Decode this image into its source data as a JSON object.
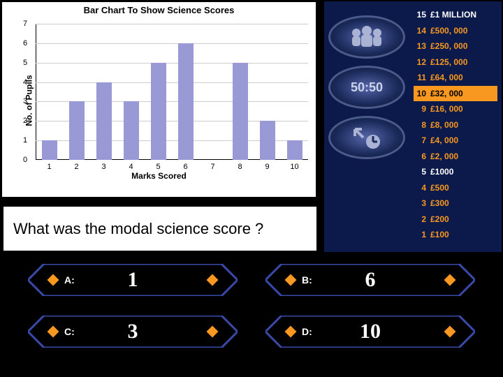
{
  "chart": {
    "title": "Bar Chart To Show Science Scores",
    "y_label": "No. of Pupils",
    "x_label": "Marks Scored",
    "ymax": 7,
    "yticks": [
      0,
      1,
      2,
      3,
      4,
      5,
      6,
      7
    ],
    "xticks": [
      1,
      2,
      3,
      4,
      5,
      6,
      7,
      8,
      9,
      10
    ],
    "values": [
      1,
      3,
      4,
      3,
      5,
      6,
      0,
      5,
      2,
      1
    ],
    "bar_color": "#9999d6",
    "grid_color": "#cccccc",
    "bg": "#ffffff"
  },
  "lifelines": {
    "audience_label": "",
    "fifty_label": "50:50",
    "phone_label": ""
  },
  "money": [
    {
      "n": "15",
      "v": "£1 MILLION",
      "milestone": true
    },
    {
      "n": "14",
      "v": "£500, 000",
      "milestone": false
    },
    {
      "n": "13",
      "v": "£250, 000",
      "milestone": false
    },
    {
      "n": "12",
      "v": "£125, 000",
      "milestone": false
    },
    {
      "n": "11",
      "v": "£64, 000",
      "milestone": false
    },
    {
      "n": "10",
      "v": "£32, 000",
      "milestone": true,
      "current": true
    },
    {
      "n": "9",
      "v": "£16, 000",
      "milestone": false
    },
    {
      "n": "8",
      "v": "£8, 000",
      "milestone": false
    },
    {
      "n": "7",
      "v": "£4, 000",
      "milestone": false
    },
    {
      "n": "6",
      "v": "£2, 000",
      "milestone": false
    },
    {
      "n": "5",
      "v": "£1000",
      "milestone": true
    },
    {
      "n": "4",
      "v": "£500",
      "milestone": false
    },
    {
      "n": "3",
      "v": "£300",
      "milestone": false
    },
    {
      "n": "2",
      "v": "£200",
      "milestone": false
    },
    {
      "n": "1",
      "v": "£100",
      "milestone": false
    }
  ],
  "question": "What was the modal science score ?",
  "answers": {
    "a": {
      "label": "A:",
      "text": "1"
    },
    "b": {
      "label": "B:",
      "text": "6"
    },
    "c": {
      "label": "C:",
      "text": "3"
    },
    "d": {
      "label": "D:",
      "text": "10"
    }
  },
  "colors": {
    "answer_border": "#3a4aaa",
    "answer_fill": "#000000",
    "diamond": "#f89820"
  }
}
